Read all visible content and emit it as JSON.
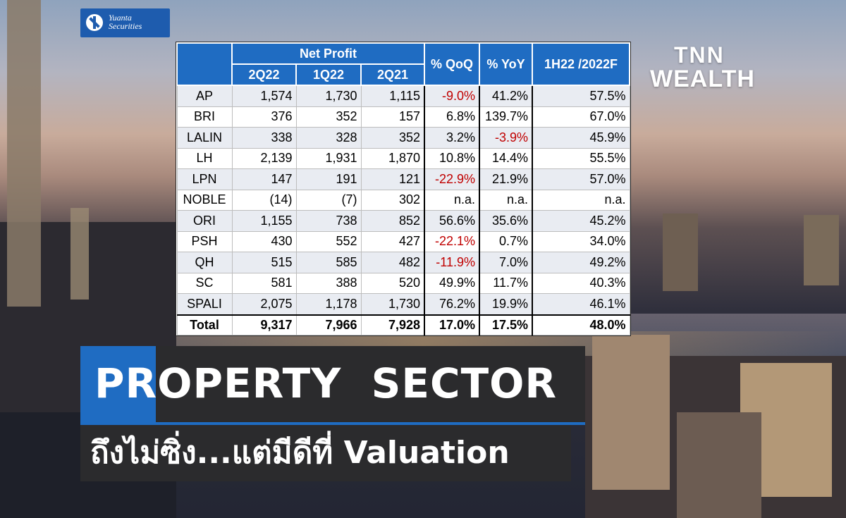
{
  "brand": {
    "yuanta_line1": "Yuanta",
    "yuanta_line2": "Securities",
    "tnn_line1": "TNN",
    "tnn_line2": "WEALTH"
  },
  "table": {
    "header_company": "",
    "header_group": "Net Profit",
    "header_periods": [
      "2Q22",
      "1Q22",
      "2Q21"
    ],
    "header_qoq": "% QoQ",
    "header_yoy": "% YoY",
    "header_ratio": "1H22 /2022F",
    "rows": [
      {
        "name": "AP",
        "q2_22": "1,574",
        "q1_22": "1,730",
        "q2_21": "1,115",
        "qoq": "-9.0%",
        "yoy": "41.2%",
        "ratio": "57.5%"
      },
      {
        "name": "BRI",
        "q2_22": "376",
        "q1_22": "352",
        "q2_21": "157",
        "qoq": "6.8%",
        "yoy": "139.7%",
        "ratio": "67.0%"
      },
      {
        "name": "LALIN",
        "q2_22": "338",
        "q1_22": "328",
        "q2_21": "352",
        "qoq": "3.2%",
        "yoy": "-3.9%",
        "ratio": "45.9%"
      },
      {
        "name": "LH",
        "q2_22": "2,139",
        "q1_22": "1,931",
        "q2_21": "1,870",
        "qoq": "10.8%",
        "yoy": "14.4%",
        "ratio": "55.5%"
      },
      {
        "name": "LPN",
        "q2_22": "147",
        "q1_22": "191",
        "q2_21": "121",
        "qoq": "-22.9%",
        "yoy": "21.9%",
        "ratio": "57.0%"
      },
      {
        "name": "NOBLE",
        "q2_22": "(14)",
        "q1_22": "(7)",
        "q2_21": "302",
        "qoq": "n.a.",
        "yoy": "n.a.",
        "ratio": "n.a."
      },
      {
        "name": "ORI",
        "q2_22": "1,155",
        "q1_22": "738",
        "q2_21": "852",
        "qoq": "56.6%",
        "yoy": "35.6%",
        "ratio": "45.2%"
      },
      {
        "name": "PSH",
        "q2_22": "430",
        "q1_22": "552",
        "q2_21": "427",
        "qoq": "-22.1%",
        "yoy": "0.7%",
        "ratio": "34.0%"
      },
      {
        "name": "QH",
        "q2_22": "515",
        "q1_22": "585",
        "q2_21": "482",
        "qoq": "-11.9%",
        "yoy": "7.0%",
        "ratio": "49.2%"
      },
      {
        "name": "SC",
        "q2_22": "581",
        "q1_22": "388",
        "q2_21": "520",
        "qoq": "49.9%",
        "yoy": "11.7%",
        "ratio": "40.3%"
      },
      {
        "name": "SPALI",
        "q2_22": "2,075",
        "q1_22": "1,178",
        "q2_21": "1,730",
        "qoq": "76.2%",
        "yoy": "19.9%",
        "ratio": "46.1%"
      }
    ],
    "total": {
      "name": "Total",
      "q2_22": "9,317",
      "q1_22": "7,966",
      "q2_21": "7,928",
      "qoq": "17.0%",
      "yoy": "17.5%",
      "ratio": "48.0%"
    },
    "negative_color": "#c00000",
    "header_color": "#1f6cc2"
  },
  "headline": {
    "line1": "PROPERTY  SECTOR",
    "line2": "ถึงไม่ซิ่ง...แต่มีดีที่ Valuation",
    "accent_color": "#1f6cc2"
  }
}
